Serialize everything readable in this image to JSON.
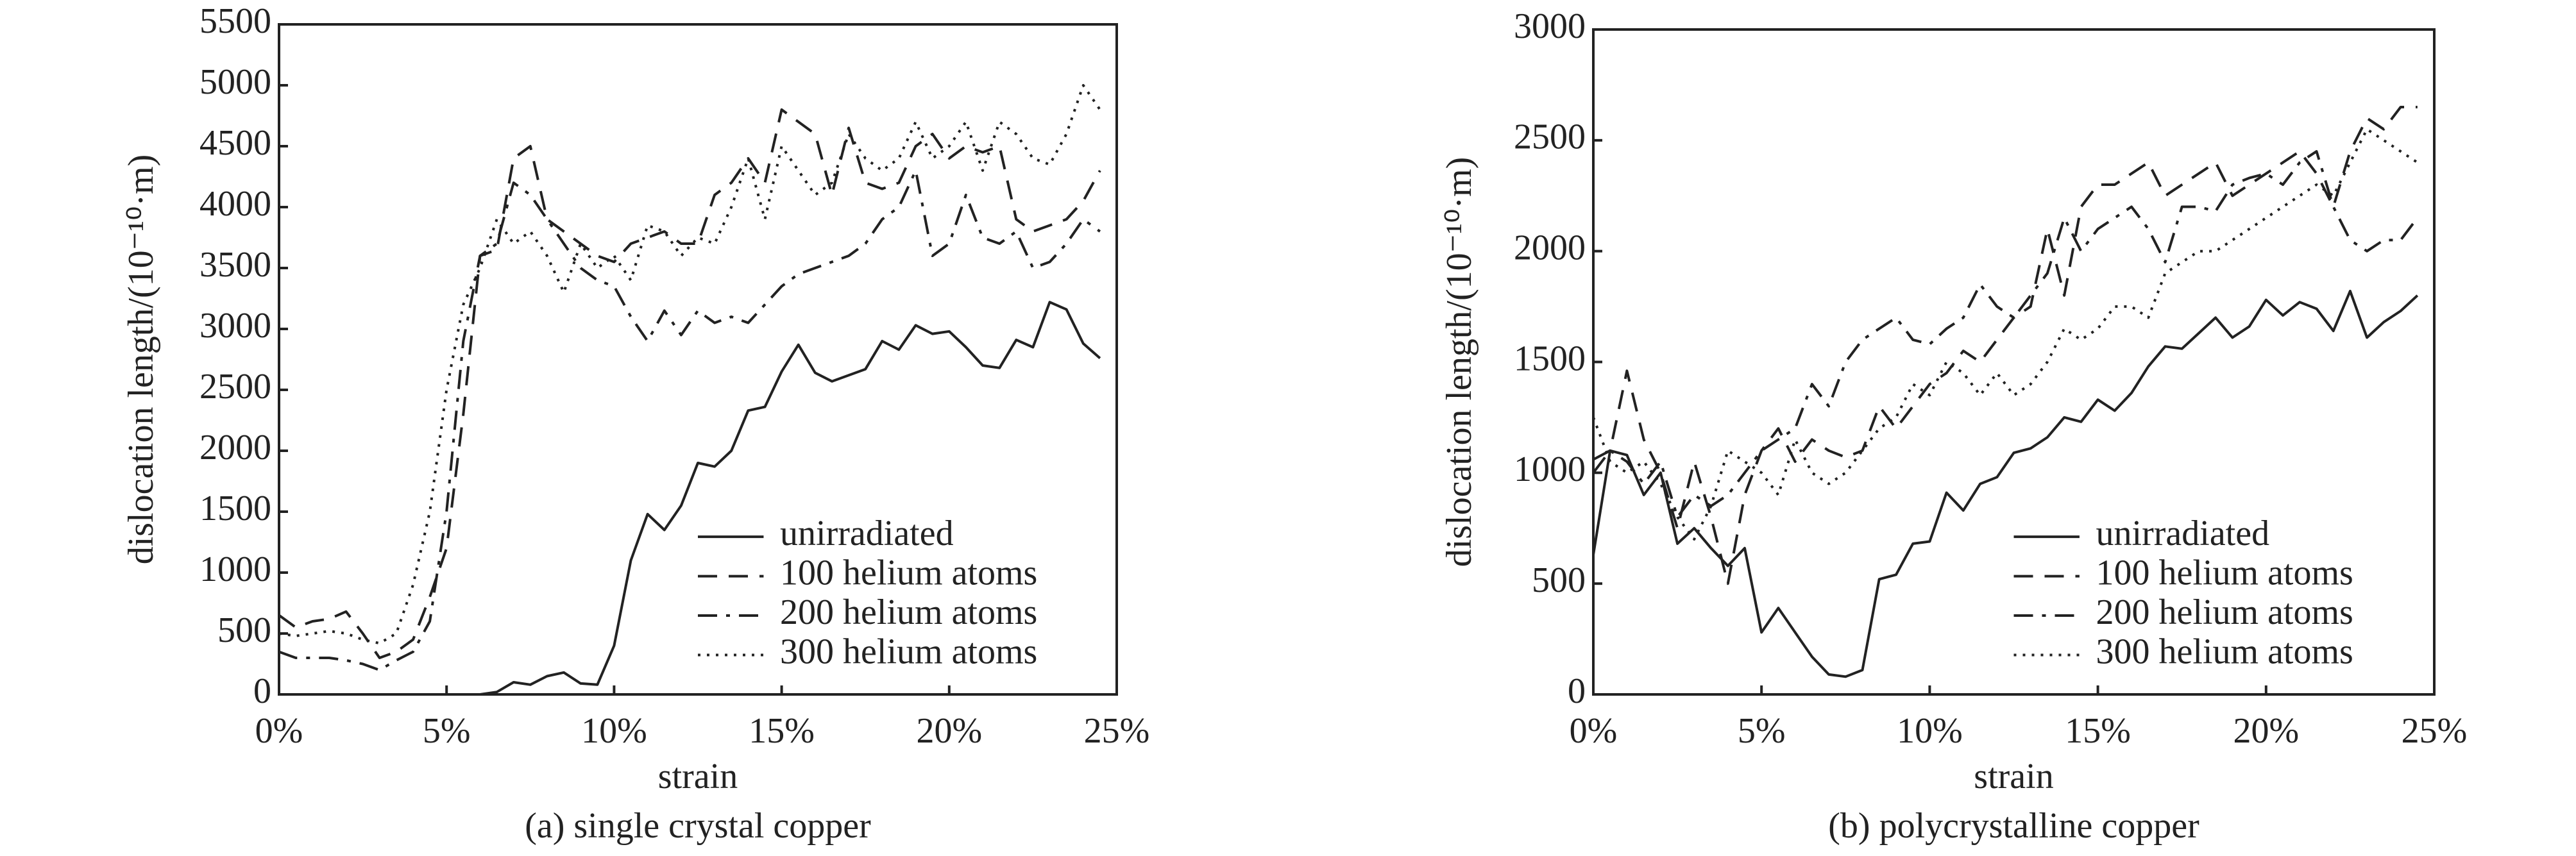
{
  "chart_data": [
    {
      "type": "line",
      "caption": "(a) single crystal copper",
      "xlabel": "strain",
      "ylabel": "dislocation length/(10⁻¹⁰·m)",
      "xlim": [
        0,
        25
      ],
      "ylim": [
        0,
        5500
      ],
      "xticks": [
        {
          "value": 0,
          "label": "0%"
        },
        {
          "value": 5,
          "label": "5%"
        },
        {
          "value": 10,
          "label": "10%"
        },
        {
          "value": 15,
          "label": "15%"
        },
        {
          "value": 20,
          "label": "20%"
        },
        {
          "value": 25,
          "label": "25%"
        }
      ],
      "yticks": [
        0,
        500,
        1000,
        1500,
        2000,
        2500,
        3000,
        3500,
        4000,
        4500,
        5000,
        5500
      ],
      "legend": "lower right",
      "x": [
        0,
        0.5,
        1,
        1.5,
        2,
        2.5,
        3,
        3.5,
        4,
        4.5,
        5,
        5.5,
        6,
        6.5,
        7,
        7.5,
        8,
        8.5,
        9,
        9.5,
        10,
        10.5,
        11,
        11.5,
        12,
        12.5,
        13,
        13.5,
        14,
        14.5,
        15,
        15.5,
        16,
        16.5,
        17,
        17.5,
        18,
        18.5,
        19,
        19.5,
        20,
        20.5,
        21,
        21.5,
        22,
        22.5,
        23,
        23.5,
        24,
        24.5
      ],
      "series": [
        {
          "name": "unirradiated",
          "color": "#222",
          "style": "solid",
          "values": [
            0,
            0,
            0,
            0,
            0,
            0,
            0,
            0,
            0,
            0,
            0,
            0,
            0,
            20,
            100,
            80,
            150,
            180,
            90,
            80,
            400,
            1100,
            1480,
            1350,
            1550,
            1900,
            1870,
            2000,
            2330,
            2360,
            2650,
            2870,
            2640,
            2570,
            2620,
            2670,
            2900,
            2830,
            3030,
            2960,
            2980,
            2850,
            2700,
            2680,
            2910,
            2850,
            3220,
            3160,
            2880,
            2760
          ]
        },
        {
          "name": "100 helium atoms",
          "color": "#222",
          "style": "dashed",
          "values": [
            650,
            550,
            600,
            620,
            680,
            500,
            300,
            350,
            450,
            800,
            1200,
            2300,
            3600,
            3650,
            4400,
            4500,
            3900,
            3800,
            3700,
            3600,
            3550,
            3700,
            3750,
            3800,
            3700,
            3700,
            4100,
            4200,
            4400,
            4200,
            4800,
            4700,
            4600,
            4100,
            4650,
            4200,
            4150,
            4200,
            4500,
            4600,
            4400,
            4500,
            4450,
            4500,
            3900,
            3800,
            3850,
            3900,
            4050,
            4300
          ]
        },
        {
          "name": "200 helium atoms",
          "color": "#222",
          "style": "dashdot",
          "values": [
            350,
            300,
            300,
            300,
            280,
            250,
            200,
            280,
            350,
            600,
            1500,
            2900,
            3600,
            3700,
            4200,
            4100,
            3900,
            3700,
            3500,
            3400,
            3350,
            3100,
            2900,
            3150,
            2950,
            3150,
            3050,
            3100,
            3050,
            3200,
            3350,
            3450,
            3500,
            3550,
            3600,
            3700,
            3900,
            4000,
            4300,
            3600,
            3700,
            4100,
            3750,
            3700,
            3800,
            3500,
            3550,
            3700,
            3900,
            3800
          ]
        },
        {
          "name": "300 helium atoms",
          "color": "#222",
          "style": "dotted",
          "values": [
            500,
            480,
            500,
            520,
            500,
            450,
            420,
            500,
            900,
            1500,
            2500,
            3200,
            3500,
            3900,
            3700,
            3800,
            3600,
            3300,
            3700,
            3500,
            3600,
            3400,
            3850,
            3800,
            3600,
            3750,
            3700,
            4000,
            4400,
            3900,
            4500,
            4300,
            4100,
            4200,
            4600,
            4400,
            4300,
            4400,
            4700,
            4400,
            4500,
            4700,
            4300,
            4700,
            4600,
            4400,
            4350,
            4600,
            5000,
            4800
          ]
        }
      ]
    },
    {
      "type": "line",
      "caption": "(b) polycrystalline copper",
      "xlabel": "strain",
      "ylabel": "dislocation length/(10⁻¹⁰·m)",
      "xlim": [
        0,
        25
      ],
      "ylim": [
        0,
        3000
      ],
      "xticks": [
        {
          "value": 0,
          "label": "0%"
        },
        {
          "value": 5,
          "label": "5%"
        },
        {
          "value": 10,
          "label": "10%"
        },
        {
          "value": 15,
          "label": "15%"
        },
        {
          "value": 20,
          "label": "20%"
        },
        {
          "value": 25,
          "label": "25%"
        }
      ],
      "yticks": [
        0,
        500,
        1000,
        1500,
        2000,
        2500,
        3000
      ],
      "legend": "lower right",
      "x": [
        0,
        0.5,
        1,
        1.5,
        2,
        2.5,
        3,
        3.5,
        4,
        4.5,
        5,
        5.5,
        6,
        6.5,
        7,
        7.5,
        8,
        8.5,
        9,
        9.5,
        10,
        10.5,
        11,
        11.5,
        12,
        12.5,
        13,
        13.5,
        14,
        14.5,
        15,
        15.5,
        16,
        16.5,
        17,
        17.5,
        18,
        18.5,
        19,
        19.5,
        20,
        20.5,
        21,
        21.5,
        22,
        22.5,
        23,
        23.5,
        24,
        24.5
      ],
      "series": [
        {
          "name": "unirradiated",
          "color": "#222",
          "style": "solid",
          "values": [
            630,
            1100,
            1080,
            900,
            1000,
            680,
            750,
            660,
            580,
            660,
            280,
            390,
            280,
            170,
            90,
            80,
            110,
            520,
            540,
            680,
            690,
            910,
            830,
            950,
            980,
            1090,
            1110,
            1160,
            1250,
            1230,
            1330,
            1280,
            1360,
            1480,
            1570,
            1560,
            1630,
            1700,
            1610,
            1660,
            1780,
            1710,
            1770,
            1740,
            1640,
            1820,
            1610,
            1680,
            1730,
            1800
          ]
        },
        {
          "name": "100 helium atoms",
          "color": "#222",
          "style": "dashed",
          "values": [
            1060,
            1100,
            1460,
            1150,
            1000,
            750,
            1050,
            800,
            500,
            900,
            1100,
            1200,
            1050,
            1150,
            1100,
            1070,
            1100,
            1300,
            1200,
            1300,
            1400,
            1450,
            1550,
            1500,
            1600,
            1700,
            1750,
            2100,
            1800,
            2200,
            2300,
            2300,
            2350,
            2400,
            2250,
            2300,
            2350,
            2400,
            2250,
            2300,
            2350,
            2400,
            2450,
            2350,
            2200,
            2450,
            2600,
            2550,
            2650,
            2650
          ]
        },
        {
          "name": "200 helium atoms",
          "color": "#222",
          "style": "dashdot",
          "values": [
            1000,
            1100,
            1050,
            950,
            1050,
            800,
            900,
            850,
            900,
            1000,
            1100,
            1150,
            1200,
            1400,
            1300,
            1500,
            1600,
            1650,
            1700,
            1600,
            1580,
            1650,
            1700,
            1850,
            1750,
            1700,
            1800,
            1900,
            2150,
            2000,
            2100,
            2150,
            2200,
            2100,
            1950,
            2200,
            2200,
            2180,
            2300,
            2330,
            2350,
            2300,
            2400,
            2450,
            2200,
            2050,
            2000,
            2050,
            2050,
            2150
          ]
        },
        {
          "name": "300 helium atoms",
          "color": "#222",
          "style": "dotted",
          "values": [
            1250,
            1050,
            1000,
            1050,
            950,
            800,
            700,
            850,
            1100,
            1050,
            1000,
            900,
            1150,
            1000,
            950,
            1000,
            1100,
            1200,
            1250,
            1400,
            1350,
            1500,
            1450,
            1350,
            1450,
            1350,
            1400,
            1500,
            1650,
            1600,
            1650,
            1750,
            1750,
            1700,
            1900,
            1950,
            2000,
            2000,
            2050,
            2100,
            2150,
            2200,
            2250,
            2300,
            2250,
            2400,
            2550,
            2500,
            2450,
            2400
          ]
        }
      ]
    }
  ]
}
